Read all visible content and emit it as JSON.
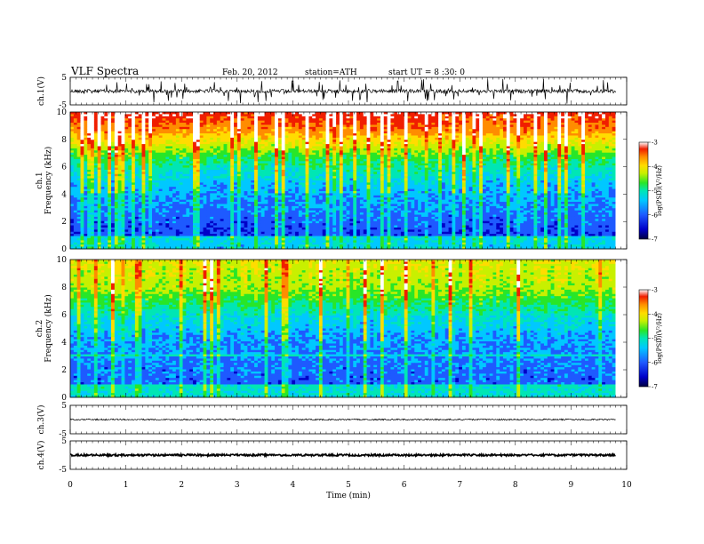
{
  "header": {
    "title": "VLF  Spectra",
    "date": "Feb. 20, 2012",
    "station": "station=ATH",
    "start": "start  UT  =   8  :30: 0"
  },
  "colors": {
    "trace": "#000000",
    "frame": "#000000",
    "colormap": [
      "#000040",
      "#0000c8",
      "#1e5aff",
      "#00c8ff",
      "#00e6b4",
      "#28e628",
      "#c8f000",
      "#ffdc00",
      "#ff8c00",
      "#f01e00",
      "#ffffff"
    ]
  },
  "chart_data": [
    {
      "type": "line",
      "id": "ch1",
      "ylabel": "ch.1(V)",
      "ylim": [
        -5,
        5
      ],
      "yticks": [
        "5",
        "-5"
      ],
      "baseline_v": 0
    },
    {
      "type": "heatmap",
      "id": "spec1",
      "ylabel_lines": [
        "ch.1",
        "Frequency  (kHz)"
      ],
      "ylim": [
        0,
        10
      ],
      "yticks": [
        "10",
        "8",
        "6",
        "4",
        "2",
        "0"
      ],
      "colorbar": {
        "label": "log(PSD)(V²/Hz)",
        "range": [
          -7,
          -3
        ],
        "ticks": [
          "-3",
          "-4",
          "-5",
          "-6",
          "-7"
        ]
      }
    },
    {
      "type": "heatmap",
      "id": "spec2",
      "ylabel_lines": [
        "ch.2",
        "Frequency  (kHz)"
      ],
      "ylim": [
        0,
        10
      ],
      "yticks": [
        "10",
        "8",
        "6",
        "4",
        "2",
        "0"
      ],
      "colorbar": {
        "label": "log(PSD)(V²/Hz)",
        "range": [
          -7,
          -3
        ],
        "ticks": [
          "-3",
          "-4",
          "-5",
          "-6",
          "-7"
        ]
      }
    },
    {
      "type": "line",
      "id": "ch3",
      "ylabel": "ch.3(V)",
      "ylim": [
        -5,
        5
      ],
      "yticks": [
        "5",
        "-5"
      ],
      "baseline_v": 0
    },
    {
      "type": "line",
      "id": "ch4",
      "ylabel": "ch.4(V)",
      "ylim": [
        -5,
        5
      ],
      "yticks": [
        "5",
        "-5"
      ],
      "baseline_v": 0
    }
  ],
  "x_axis": {
    "label": "Time  (min)",
    "range": [
      0,
      10
    ],
    "ticks": [
      "0",
      "1",
      "2",
      "3",
      "4",
      "5",
      "6",
      "7",
      "8",
      "9",
      "10"
    ],
    "data_end": 9.8
  }
}
